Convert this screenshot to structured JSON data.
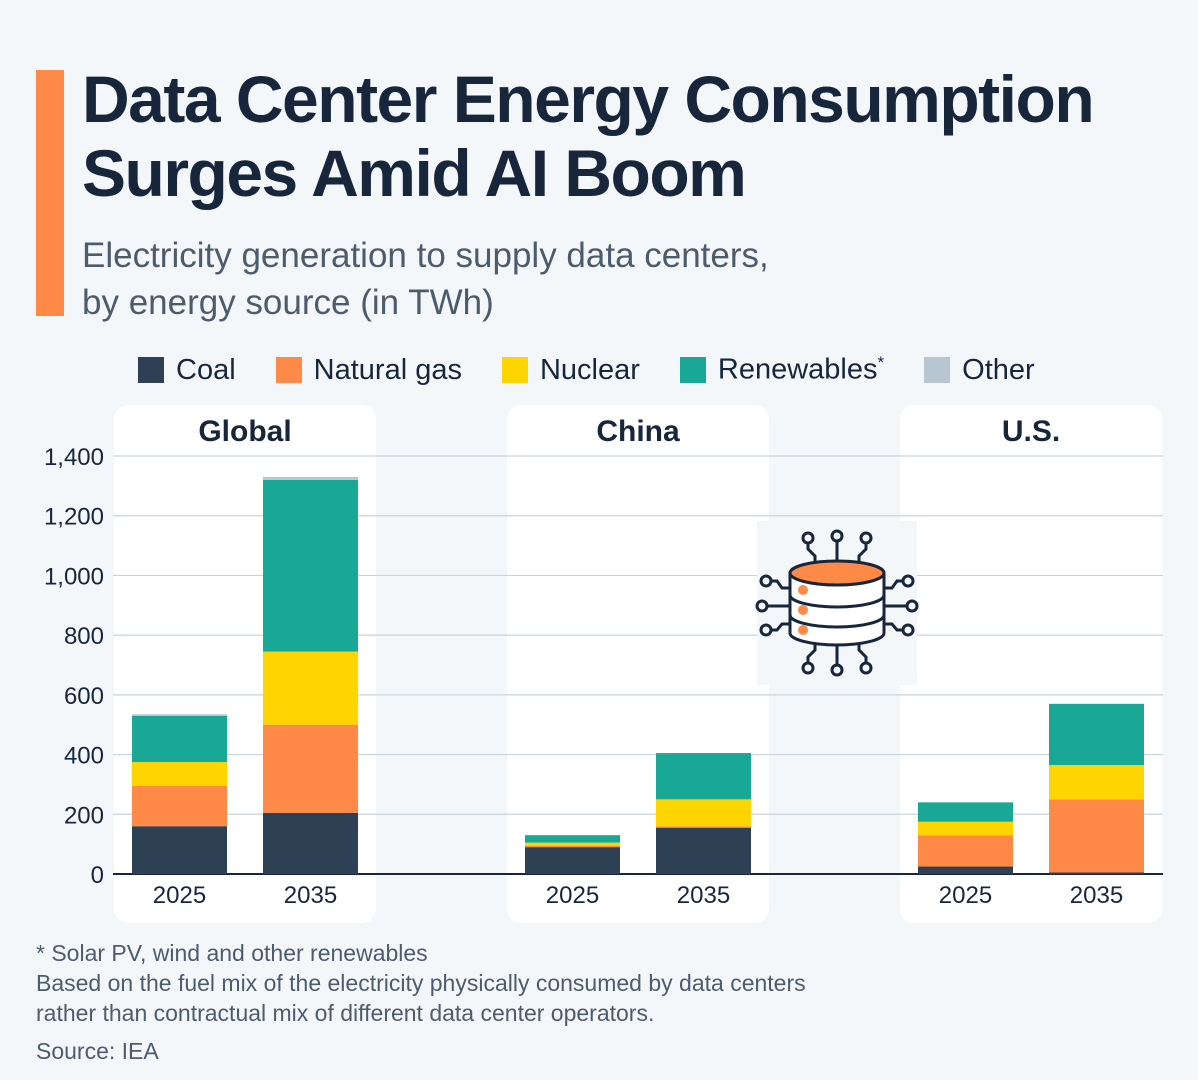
{
  "title": "Data Center Energy Consumption Surges Amid AI Boom",
  "subtitle_line1": "Electricity generation to supply data centers,",
  "subtitle_line2": "by energy source (in TWh)",
  "legend": [
    {
      "label": "Coal",
      "color": "#2d4054"
    },
    {
      "label": "Natural gas",
      "color": "#ff8a47"
    },
    {
      "label": "Nuclear",
      "color": "#ffd500"
    },
    {
      "label": "Renewables",
      "sup": "*",
      "color": "#1aa896"
    },
    {
      "label": "Other",
      "color": "#b7c6d1"
    }
  ],
  "footnote_1": "* Solar PV, wind and other renewables",
  "footnote_2": "Based on the fuel mix of the electricity physically consumed by data centers",
  "footnote_3": "rather than contractual mix of different data center operators.",
  "source": "Source: IEA",
  "chart_data": {
    "type": "bar",
    "stacked": true,
    "unit": "TWh",
    "ylim": [
      0,
      1400
    ],
    "yticks": [
      0,
      200,
      400,
      600,
      800,
      1000,
      1200,
      1400
    ],
    "ytick_labels": [
      "0",
      "200",
      "400",
      "600",
      "800",
      "1,000",
      "1,200",
      "1,400"
    ],
    "grid": true,
    "series_names": [
      "Coal",
      "Natural gas",
      "Nuclear",
      "Renewables",
      "Other"
    ],
    "series_colors": [
      "#2d4054",
      "#ff8a47",
      "#ffd500",
      "#1aa896",
      "#b7c6d1"
    ],
    "panels": [
      {
        "name": "Global",
        "categories": [
          "2025",
          "2035"
        ],
        "stacks": [
          [
            160,
            135,
            80,
            155,
            5
          ],
          [
            205,
            295,
            245,
            575,
            10
          ]
        ]
      },
      {
        "name": "China",
        "categories": [
          "2025",
          "2035"
        ],
        "stacks": [
          [
            90,
            5,
            10,
            25,
            0
          ],
          [
            155,
            5,
            90,
            155,
            0
          ]
        ]
      },
      {
        "name": "U.S.",
        "categories": [
          "2025",
          "2035"
        ],
        "stacks": [
          [
            25,
            105,
            45,
            65,
            0
          ],
          [
            5,
            245,
            115,
            205,
            0
          ]
        ]
      }
    ]
  }
}
